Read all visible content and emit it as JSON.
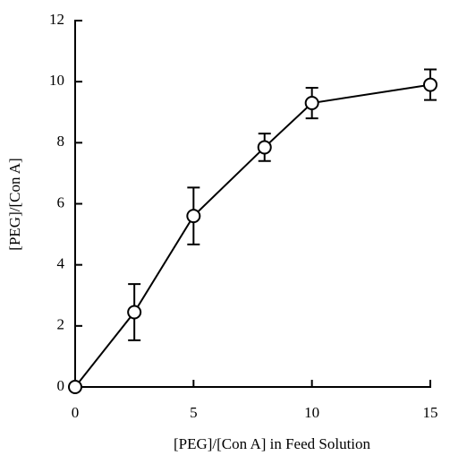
{
  "chart_data": {
    "type": "line",
    "x_label": "[PEG]/[Con A] in Feed Solution",
    "y_label": "[PEG]/[Con A]",
    "x": [
      0,
      2.5,
      5,
      8,
      10,
      15
    ],
    "series": [
      {
        "name": null,
        "color": "#000000",
        "values": [
          0,
          2.45,
          5.6,
          7.85,
          9.3,
          9.9
        ],
        "errors": [
          null,
          0.92,
          0.93,
          0.45,
          0.5,
          0.5
        ]
      }
    ],
    "xlim": [
      0,
      15
    ],
    "xticks": [
      0,
      5,
      10,
      15
    ],
    "ylim": [
      0,
      12
    ],
    "yticks": [
      0,
      2,
      4,
      6,
      8,
      10,
      12
    ],
    "grid": false
  }
}
